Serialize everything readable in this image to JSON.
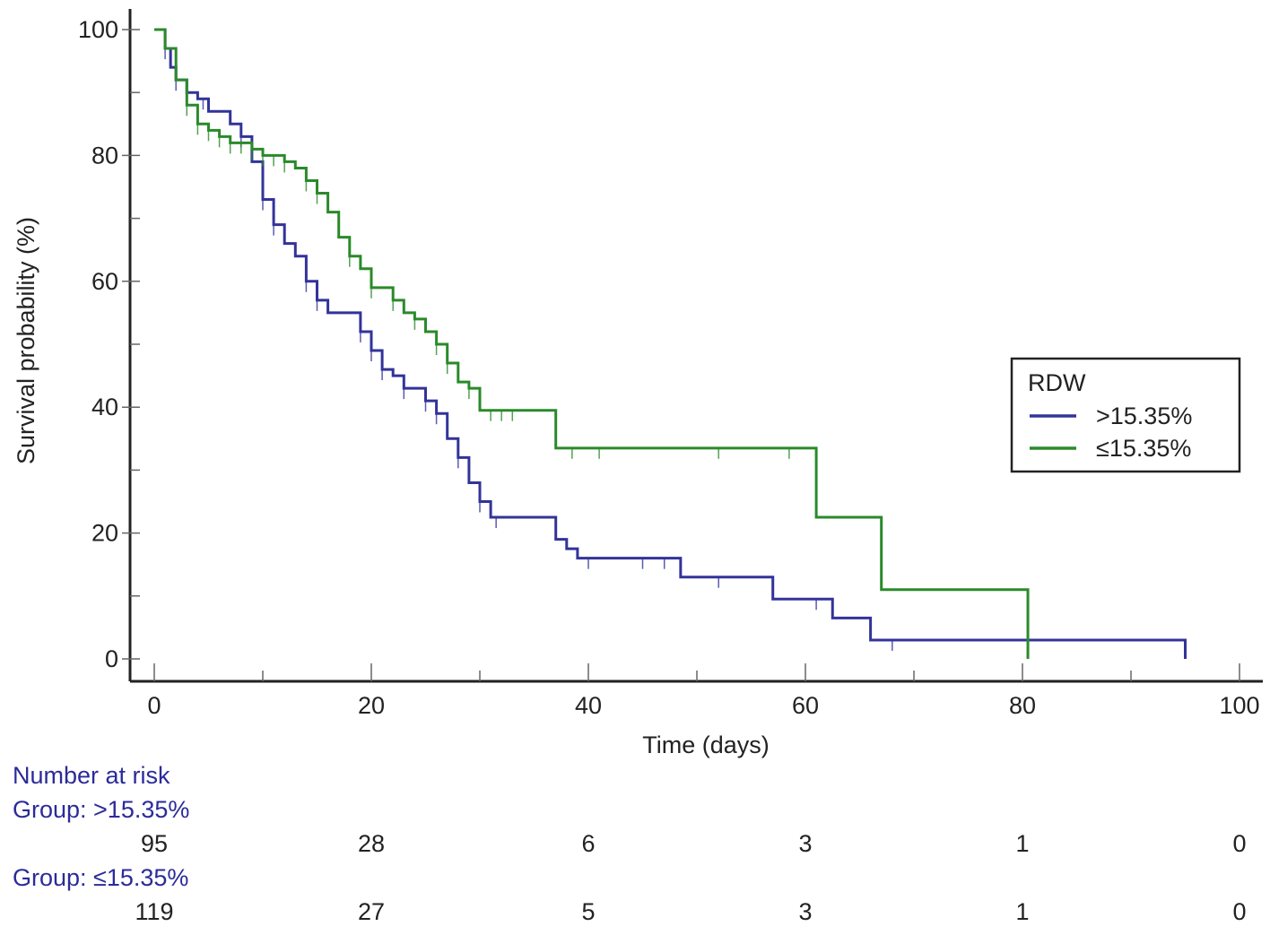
{
  "chart_data": {
    "type": "line",
    "subtype": "kaplan-meier",
    "title": "",
    "xlabel": "Time (days)",
    "ylabel": "Survival probability (%)",
    "xlim": [
      0,
      100
    ],
    "ylim": [
      0,
      100
    ],
    "xticks": [
      0,
      20,
      40,
      60,
      80,
      100
    ],
    "yticks": [
      0,
      20,
      40,
      60,
      80,
      100
    ],
    "legend": {
      "title": "RDW",
      "position": "right",
      "entries": [
        ">15.35%",
        "≤15.35%"
      ]
    },
    "series": [
      {
        "name": ">15.35%",
        "color": "#33339a",
        "steps": [
          [
            0,
            100
          ],
          [
            1,
            97
          ],
          [
            1.5,
            94
          ],
          [
            2,
            92
          ],
          [
            3,
            90
          ],
          [
            4,
            89
          ],
          [
            5,
            87
          ],
          [
            6,
            87
          ],
          [
            7,
            85
          ],
          [
            8,
            83
          ],
          [
            9,
            79
          ],
          [
            10,
            73
          ],
          [
            11,
            69
          ],
          [
            12,
            66
          ],
          [
            13,
            64
          ],
          [
            14,
            60
          ],
          [
            15,
            57
          ],
          [
            16,
            55
          ],
          [
            19,
            52
          ],
          [
            20,
            49
          ],
          [
            21,
            46
          ],
          [
            22,
            45
          ],
          [
            23,
            43
          ],
          [
            25,
            41
          ],
          [
            26,
            39
          ],
          [
            27,
            35
          ],
          [
            28,
            32
          ],
          [
            29,
            28
          ],
          [
            30,
            25
          ],
          [
            31,
            22.5
          ],
          [
            37,
            19
          ],
          [
            38,
            17.5
          ],
          [
            39,
            16
          ],
          [
            48.5,
            13
          ],
          [
            57,
            9.5
          ],
          [
            62.5,
            6.5
          ],
          [
            66,
            3
          ],
          [
            95,
            0
          ]
        ],
        "end": 95,
        "censored": [
          1,
          2,
          4.5,
          8,
          10,
          11,
          14,
          15,
          19,
          20,
          21,
          23,
          25,
          26,
          28,
          30,
          31.5,
          40,
          45,
          47,
          52,
          61,
          68
        ]
      },
      {
        "name": "≤15.35%",
        "color": "#2a8a2a",
        "steps": [
          [
            0,
            100
          ],
          [
            1,
            97
          ],
          [
            2,
            92
          ],
          [
            3,
            88
          ],
          [
            4,
            85
          ],
          [
            5,
            84
          ],
          [
            6,
            83
          ],
          [
            7,
            82
          ],
          [
            8,
            82
          ],
          [
            9,
            81
          ],
          [
            10,
            80
          ],
          [
            12,
            79
          ],
          [
            13,
            78
          ],
          [
            14,
            76
          ],
          [
            15,
            74
          ],
          [
            16,
            71
          ],
          [
            17,
            67
          ],
          [
            18,
            64
          ],
          [
            19,
            62
          ],
          [
            20,
            59
          ],
          [
            21,
            59
          ],
          [
            22,
            57
          ],
          [
            23,
            55
          ],
          [
            24,
            54
          ],
          [
            25,
            52
          ],
          [
            26,
            50
          ],
          [
            27,
            47
          ],
          [
            28,
            44
          ],
          [
            29,
            43
          ],
          [
            30,
            39.5
          ],
          [
            37,
            33.5
          ],
          [
            61,
            22.5
          ],
          [
            67,
            11
          ],
          [
            80.5,
            0
          ]
        ],
        "end": 80.5,
        "censored": [
          3,
          4,
          5,
          6,
          7,
          8,
          9,
          10,
          11,
          12,
          14,
          15,
          18,
          20,
          22,
          24,
          26,
          27,
          29,
          31,
          32,
          33,
          38.5,
          41,
          52,
          58.5
        ]
      }
    ],
    "number_at_risk": {
      "heading": "Number at risk",
      "groups": [
        {
          "label": "Group: >15.35%",
          "counts": [
            "95",
            "28",
            "6",
            "3",
            "1",
            "0"
          ]
        },
        {
          "label": "Group: ≤15.35%",
          "counts": [
            "119",
            "27",
            "5",
            "3",
            "1",
            "0"
          ]
        }
      ]
    }
  }
}
